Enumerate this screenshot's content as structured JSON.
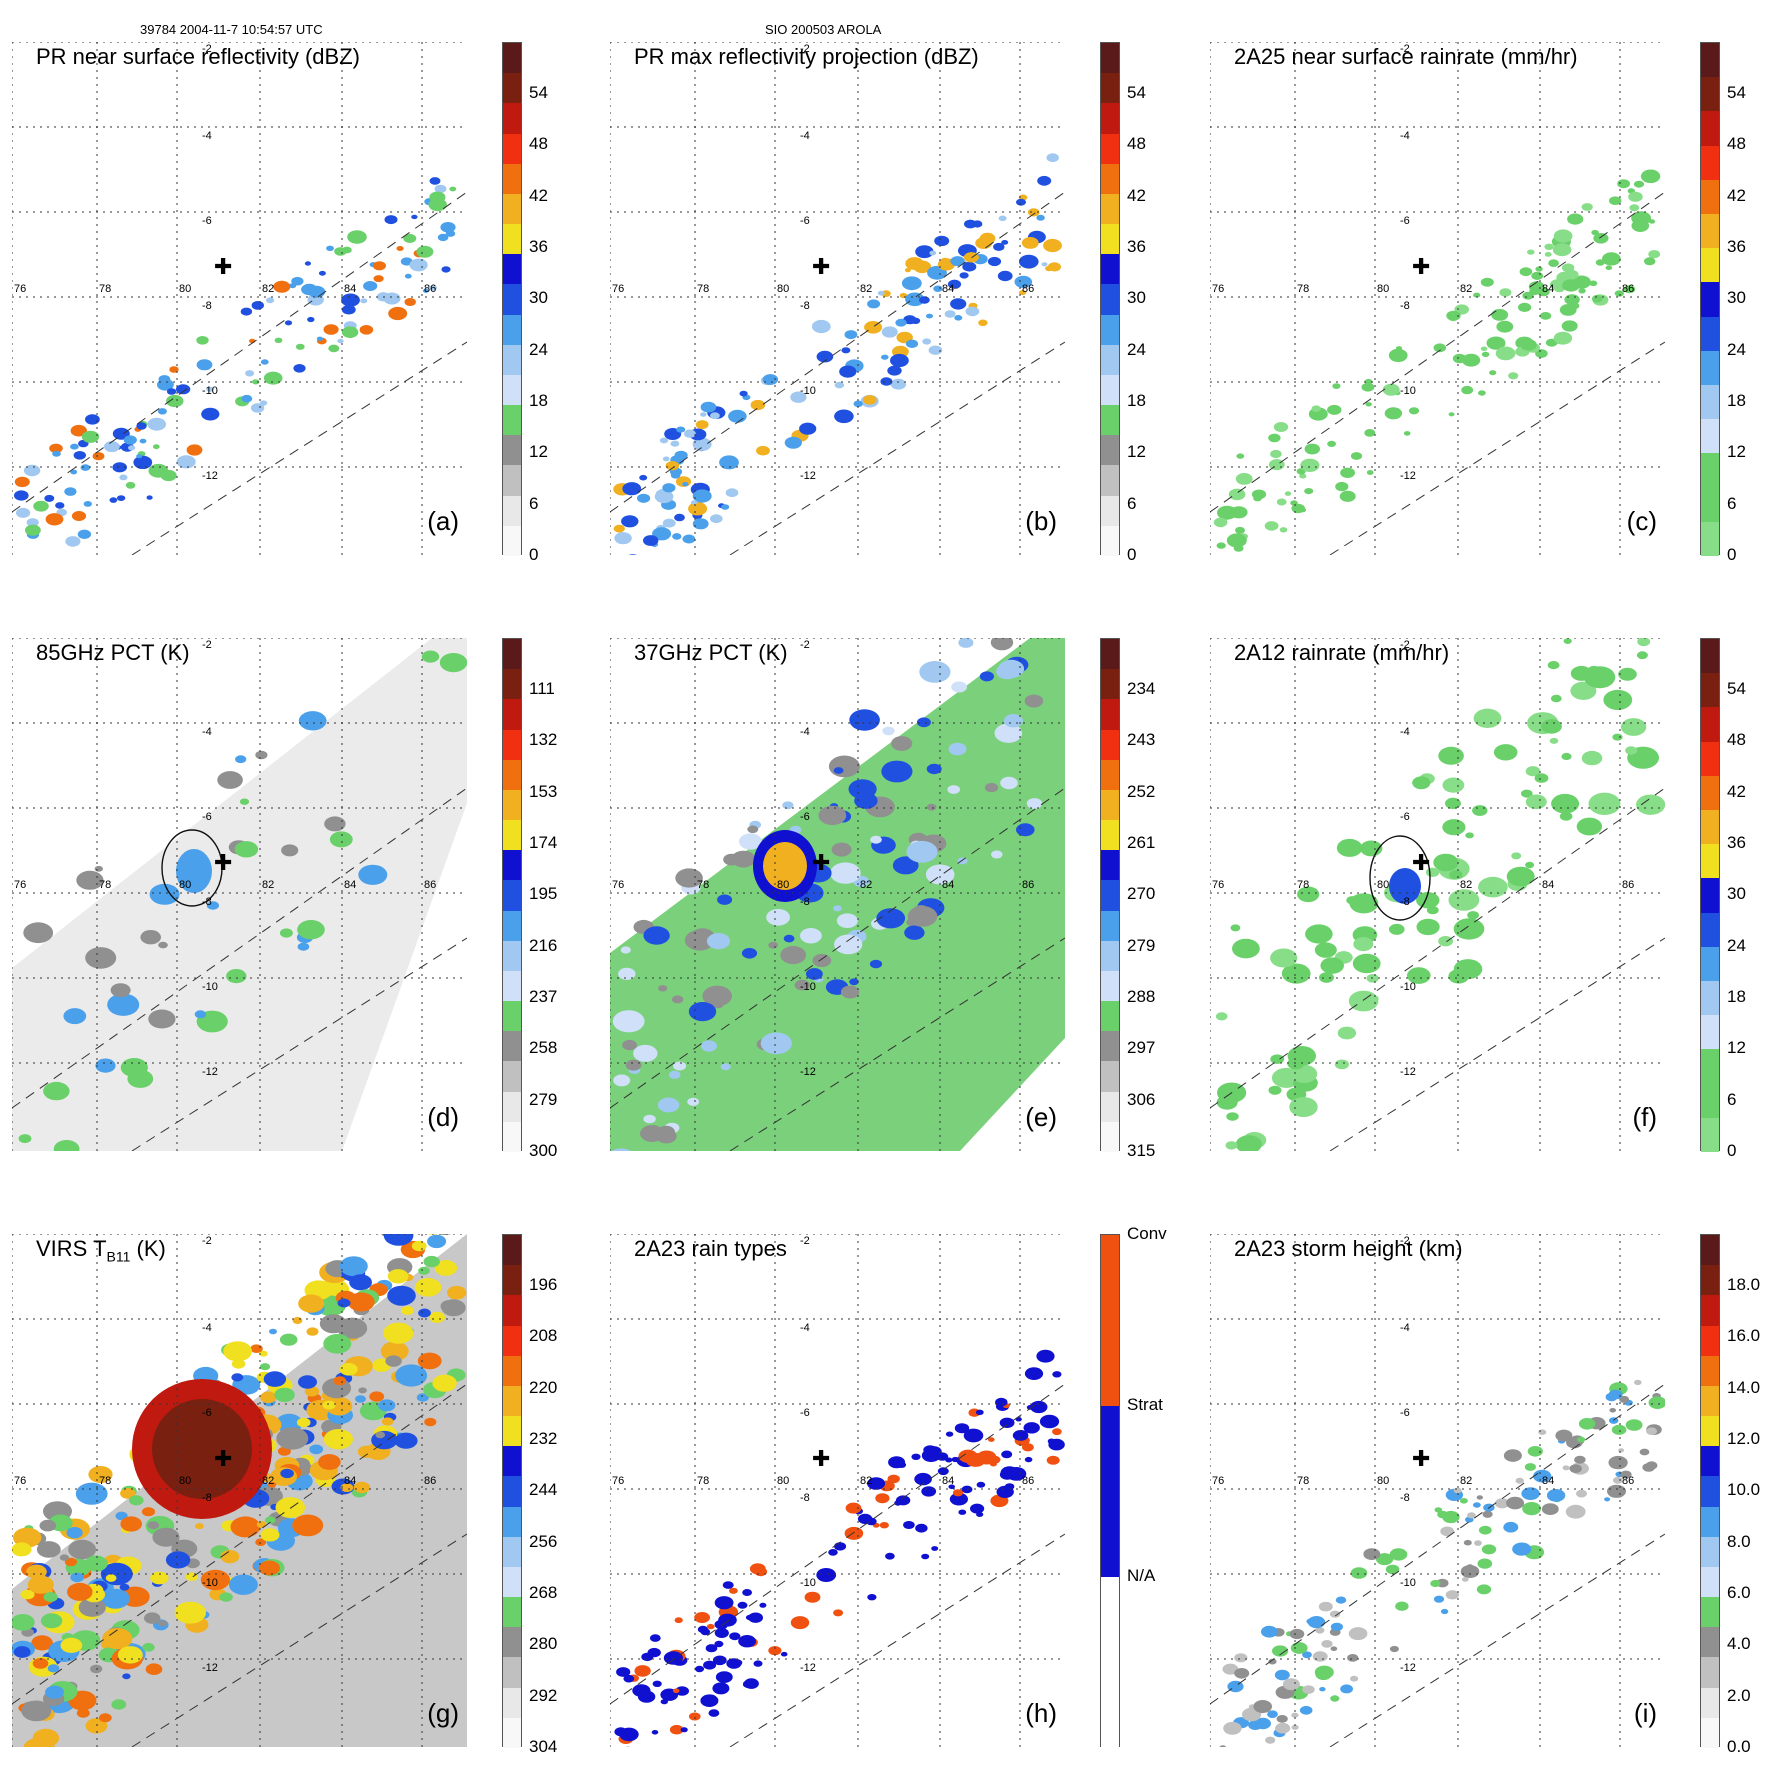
{
  "header": {
    "left": "39784 2004-11-7 10:54:57 UTC",
    "center": "SIO 200503 AROLA"
  },
  "axes": {
    "lon_labels": [
      "76",
      "78",
      "80",
      "82",
      "84",
      "86"
    ],
    "lat_labels": [
      "-2",
      "-4",
      "-6",
      "-8",
      "-10",
      "-12"
    ]
  },
  "panels": [
    {
      "id": "a",
      "title": "PR near surface reflectivity (dBZ)",
      "label": "(a)",
      "ticks": [
        "54",
        "48",
        "42",
        "36",
        "30",
        "24",
        "18",
        "12",
        "6",
        "0"
      ],
      "colors": [
        "#5a1a1a",
        "#7a2010",
        "#c01a10",
        "#f03010",
        "#f07010",
        "#f0b020",
        "#f0e020",
        "#1010d0",
        "#2050e0",
        "#4aa0ea",
        "#a0c8f0",
        "#d0e0f8",
        "#6ad06a",
        "#909090",
        "#c0c0c0",
        "#e8e8e8",
        "#f8f8f8"
      ]
    },
    {
      "id": "b",
      "title": "PR max reflectivity projection (dBZ)",
      "label": "(b)",
      "ticks": [
        "54",
        "48",
        "42",
        "36",
        "30",
        "24",
        "18",
        "12",
        "6",
        "0"
      ],
      "colors": [
        "#5a1a1a",
        "#7a2010",
        "#c01a10",
        "#f03010",
        "#f07010",
        "#f0b020",
        "#f0e020",
        "#1010d0",
        "#2050e0",
        "#4aa0ea",
        "#a0c8f0",
        "#d0e0f8",
        "#6ad06a",
        "#909090",
        "#c0c0c0",
        "#e8e8e8",
        "#f8f8f8"
      ]
    },
    {
      "id": "c",
      "title": "2A25 near surface rainrate (mm/hr)",
      "label": "(c)",
      "ticks": [
        "54",
        "48",
        "42",
        "36",
        "30",
        "24",
        "18",
        "12",
        "6",
        "0"
      ],
      "colors": [
        "#5a1a1a",
        "#7a2010",
        "#c01a10",
        "#f03010",
        "#f07010",
        "#f0b020",
        "#f0e020",
        "#1010d0",
        "#2050e0",
        "#4aa0ea",
        "#a0c8f0",
        "#d0e0f8",
        "#6ad06a",
        "#6ad06a",
        "#88dd88"
      ]
    },
    {
      "id": "d",
      "title": "85GHz PCT (K)",
      "label": "(d)",
      "ticks": [
        "111",
        "132",
        "153",
        "174",
        "195",
        "216",
        "237",
        "258",
        "279",
        "300"
      ],
      "colors": [
        "#5a1a1a",
        "#7a2010",
        "#c01a10",
        "#f03010",
        "#f07010",
        "#f0b020",
        "#f0e020",
        "#1010d0",
        "#2050e0",
        "#4aa0ea",
        "#a0c8f0",
        "#d0e0f8",
        "#6ad06a",
        "#909090",
        "#c0c0c0",
        "#e8e8e8",
        "#f8f8f8"
      ]
    },
    {
      "id": "e",
      "title": "37GHz PCT (K)",
      "label": "(e)",
      "ticks": [
        "234",
        "243",
        "252",
        "261",
        "270",
        "279",
        "288",
        "297",
        "306",
        "315"
      ],
      "colors": [
        "#5a1a1a",
        "#7a2010",
        "#c01a10",
        "#f03010",
        "#f07010",
        "#f0b020",
        "#f0e020",
        "#1010d0",
        "#2050e0",
        "#4aa0ea",
        "#a0c8f0",
        "#d0e0f8",
        "#6ad06a",
        "#909090",
        "#c0c0c0",
        "#e8e8e8",
        "#f8f8f8"
      ]
    },
    {
      "id": "f",
      "title": "2A12 rainrate (mm/hr)",
      "label": "(f)",
      "ticks": [
        "54",
        "48",
        "42",
        "36",
        "30",
        "24",
        "18",
        "12",
        "6",
        "0"
      ],
      "colors": [
        "#5a1a1a",
        "#7a2010",
        "#c01a10",
        "#f03010",
        "#f07010",
        "#f0b020",
        "#f0e020",
        "#1010d0",
        "#2050e0",
        "#4aa0ea",
        "#a0c8f0",
        "#d0e0f8",
        "#6ad06a",
        "#6ad06a",
        "#88dd88"
      ]
    },
    {
      "id": "g",
      "title": "VIRS T",
      "sub": "B11",
      "suffix": " (K)",
      "label": "(g)",
      "ticks": [
        "196",
        "208",
        "220",
        "232",
        "244",
        "256",
        "268",
        "280",
        "292",
        "304"
      ],
      "colors": [
        "#5a1a1a",
        "#7a2010",
        "#c01a10",
        "#f03010",
        "#f07010",
        "#f0b020",
        "#f0e020",
        "#1010d0",
        "#2050e0",
        "#4aa0ea",
        "#a0c8f0",
        "#d0e0f8",
        "#6ad06a",
        "#909090",
        "#c0c0c0",
        "#e8e8e8",
        "#f8f8f8"
      ]
    },
    {
      "id": "h",
      "title": "2A23 rain types",
      "label": "(h)",
      "ticks": [
        "Conv",
        "Strat",
        "N/A"
      ],
      "colors": [
        "#f05010",
        "#f05010",
        "#1010d0",
        "#1010d0",
        "#ffffff",
        "#ffffff"
      ]
    },
    {
      "id": "i",
      "title": "2A23 storm height (km)",
      "label": "(i)",
      "ticks": [
        "18.0",
        "16.0",
        "14.0",
        "12.0",
        "10.0",
        "8.0",
        "6.0",
        "4.0",
        "2.0",
        "0.0"
      ],
      "colors": [
        "#5a1a1a",
        "#7a2010",
        "#c01a10",
        "#f03010",
        "#f07010",
        "#f0b020",
        "#f0e020",
        "#1010d0",
        "#2050e0",
        "#4aa0ea",
        "#a0c8f0",
        "#d0e0f8",
        "#6ad06a",
        "#909090",
        "#c0c0c0",
        "#e8e8e8",
        "#f8f8f8"
      ]
    }
  ]
}
